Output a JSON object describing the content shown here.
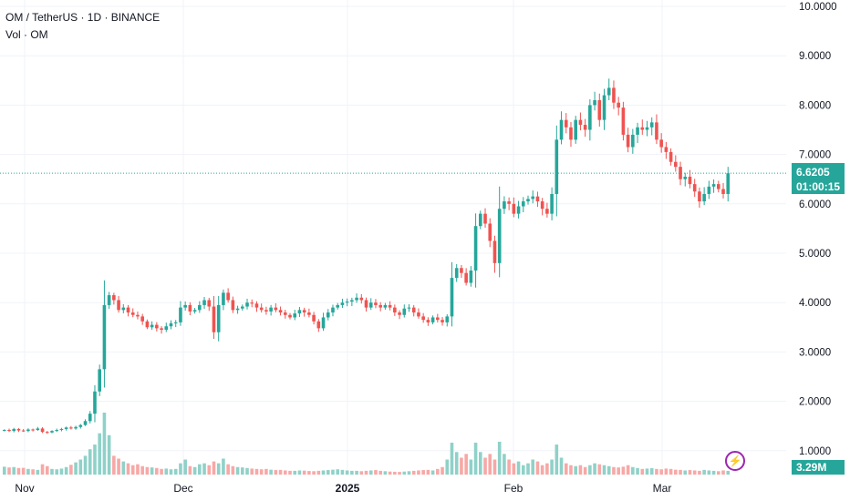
{
  "header": {
    "symbol_line": "OM / TetherUS · 1D · BINANCE",
    "volume_line": "Vol · OM"
  },
  "price_badge": {
    "price": "6.6205",
    "countdown": "01:00:15"
  },
  "volume_badge": "3.29M",
  "colors": {
    "up": "#26a69a",
    "down": "#ef5350",
    "up_vol": "#8fd1c8",
    "down_vol": "#f7a8a6",
    "grid": "#f0f3fa",
    "text": "#131722"
  },
  "chart_data": {
    "type": "candlestick",
    "x_tick_labels": [
      "Nov",
      "Dec",
      "2025",
      "Feb",
      "Mar"
    ],
    "y_tick_labels": [
      "1.0000",
      "2.0000",
      "3.0000",
      "4.0000",
      "5.0000",
      "6.0000",
      "7.0000",
      "8.0000",
      "9.0000",
      "10.0000"
    ],
    "ylim": [
      0.5,
      10.0
    ],
    "last_price": 6.6205,
    "close": [
      1.42,
      1.4,
      1.44,
      1.41,
      1.4,
      1.43,
      1.42,
      1.45,
      1.38,
      1.37,
      1.4,
      1.42,
      1.44,
      1.47,
      1.45,
      1.48,
      1.52,
      1.6,
      1.75,
      2.2,
      2.65,
      3.95,
      4.15,
      4.05,
      3.85,
      3.9,
      3.8,
      3.75,
      3.72,
      3.62,
      3.5,
      3.55,
      3.48,
      3.45,
      3.52,
      3.58,
      3.6,
      3.9,
      3.95,
      3.82,
      3.85,
      3.95,
      4.05,
      3.92,
      3.4,
      3.95,
      4.2,
      4.05,
      3.85,
      3.88,
      3.92,
      4.0,
      3.98,
      3.9,
      3.85,
      3.82,
      3.9,
      3.85,
      3.8,
      3.75,
      3.7,
      3.78,
      3.85,
      3.8,
      3.75,
      3.62,
      3.48,
      3.7,
      3.8,
      3.9,
      3.95,
      4.0,
      4.02,
      4.05,
      4.1,
      4.05,
      3.9,
      4.0,
      3.95,
      3.9,
      3.95,
      3.9,
      3.8,
      3.75,
      3.88,
      3.9,
      3.8,
      3.72,
      3.65,
      3.6,
      3.7,
      3.65,
      3.6,
      3.72,
      4.5,
      4.7,
      4.6,
      4.4,
      4.65,
      5.55,
      5.8,
      5.6,
      5.25,
      4.8,
      5.9,
      6.05,
      6.0,
      5.8,
      5.95,
      6.05,
      6.1,
      6.15,
      6.05,
      5.9,
      5.8,
      6.2,
      7.3,
      7.7,
      7.55,
      7.3,
      7.7,
      7.6,
      7.5,
      8.0,
      8.1,
      7.7,
      8.2,
      8.35,
      8.05,
      7.95,
      7.4,
      7.15,
      7.4,
      7.55,
      7.5,
      7.55,
      7.65,
      7.3,
      7.15,
      7.05,
      6.85,
      6.75,
      6.5,
      6.55,
      6.4,
      6.25,
      6.05,
      6.2,
      6.35,
      6.4,
      6.3,
      6.2,
      6.62
    ],
    "volume": [
      0.42,
      0.38,
      0.4,
      0.35,
      0.36,
      0.3,
      0.28,
      0.25,
      0.55,
      0.45,
      0.3,
      0.28,
      0.32,
      0.4,
      0.52,
      0.65,
      0.8,
      1.0,
      1.35,
      1.6,
      2.2,
      3.3,
      2.1,
      1.0,
      0.85,
      0.7,
      0.6,
      0.5,
      0.55,
      0.45,
      0.4,
      0.38,
      0.35,
      0.3,
      0.32,
      0.28,
      0.3,
      0.6,
      0.8,
      0.45,
      0.4,
      0.55,
      0.6,
      0.5,
      0.7,
      0.6,
      0.85,
      0.55,
      0.45,
      0.4,
      0.38,
      0.35,
      0.32,
      0.3,
      0.28,
      0.3,
      0.26,
      0.24,
      0.25,
      0.22,
      0.2,
      0.2,
      0.22,
      0.21,
      0.19,
      0.18,
      0.2,
      0.22,
      0.24,
      0.26,
      0.28,
      0.25,
      0.22,
      0.2,
      0.2,
      0.18,
      0.2,
      0.22,
      0.24,
      0.2,
      0.18,
      0.16,
      0.15,
      0.14,
      0.16,
      0.18,
      0.2,
      0.22,
      0.24,
      0.25,
      0.22,
      0.3,
      0.4,
      0.8,
      1.7,
      1.2,
      0.9,
      1.1,
      0.8,
      1.7,
      1.2,
      0.9,
      1.1,
      0.8,
      1.75,
      1.1,
      0.8,
      0.6,
      0.7,
      0.5,
      0.6,
      0.8,
      0.7,
      0.5,
      0.6,
      0.8,
      1.6,
      0.9,
      0.6,
      0.5,
      0.45,
      0.5,
      0.4,
      0.5,
      0.6,
      0.55,
      0.5,
      0.45,
      0.4,
      0.38,
      0.42,
      0.5,
      0.4,
      0.35,
      0.3,
      0.32,
      0.34,
      0.3,
      0.28,
      0.32,
      0.3,
      0.26,
      0.25,
      0.22,
      0.24,
      0.22,
      0.2,
      0.25,
      0.22,
      0.2,
      0.18,
      0.22,
      0.2
    ]
  }
}
